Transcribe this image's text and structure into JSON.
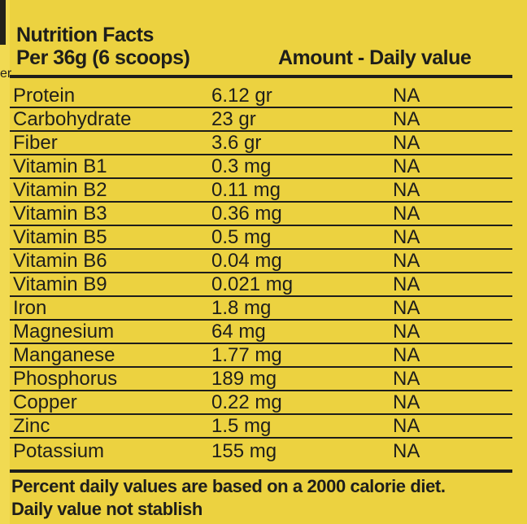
{
  "label": {
    "title": "Nutrition Facts",
    "serving": "Per 36g (6 scoops)",
    "amount_header": "Amount - Daily value",
    "edge_text": "er",
    "rows": [
      {
        "name": "Protein",
        "amount": "6.12 gr",
        "daily": "NA"
      },
      {
        "name": "Carbohydrate",
        "amount": "23 gr",
        "daily": "NA"
      },
      {
        "name": "Fiber",
        "amount": "3.6 gr",
        "daily": "NA"
      },
      {
        "name": "Vitamin B1",
        "amount": "0.3 mg",
        "daily": "NA"
      },
      {
        "name": "Vitamin B2",
        "amount": "0.11 mg",
        "daily": "NA"
      },
      {
        "name": "Vitamin B3",
        "amount": "0.36 mg",
        "daily": "NA"
      },
      {
        "name": "Vitamin B5",
        "amount": "0.5 mg",
        "daily": "NA"
      },
      {
        "name": "Vitamin B6",
        "amount": "0.04 mg",
        "daily": "NA"
      },
      {
        "name": "Vitamin B9",
        "amount": "0.021 mg",
        "daily": "NA"
      },
      {
        "name": "Iron",
        "amount": "1.8 mg",
        "daily": "NA"
      },
      {
        "name": "Magnesium",
        "amount": "64 mg",
        "daily": "NA"
      },
      {
        "name": "Manganese",
        "amount": "1.77 mg",
        "daily": "NA"
      },
      {
        "name": "Phosphorus",
        "amount": "189 mg",
        "daily": "NA"
      },
      {
        "name": "Copper",
        "amount": "0.22 mg",
        "daily": "NA"
      },
      {
        "name": "Zinc",
        "amount": "1.5 mg",
        "daily": "NA"
      },
      {
        "name": "Potassium",
        "amount": "155 mg",
        "daily": "NA"
      }
    ],
    "footnote_line1": "Percent daily values are based on a 2000 calorie diet.",
    "footnote_line2": "Daily value not stablish",
    "colors": {
      "background": "#ecd240",
      "edge_strip": "#f1da52",
      "text": "#1e1e1b",
      "edge_bar": "#23221b"
    }
  }
}
